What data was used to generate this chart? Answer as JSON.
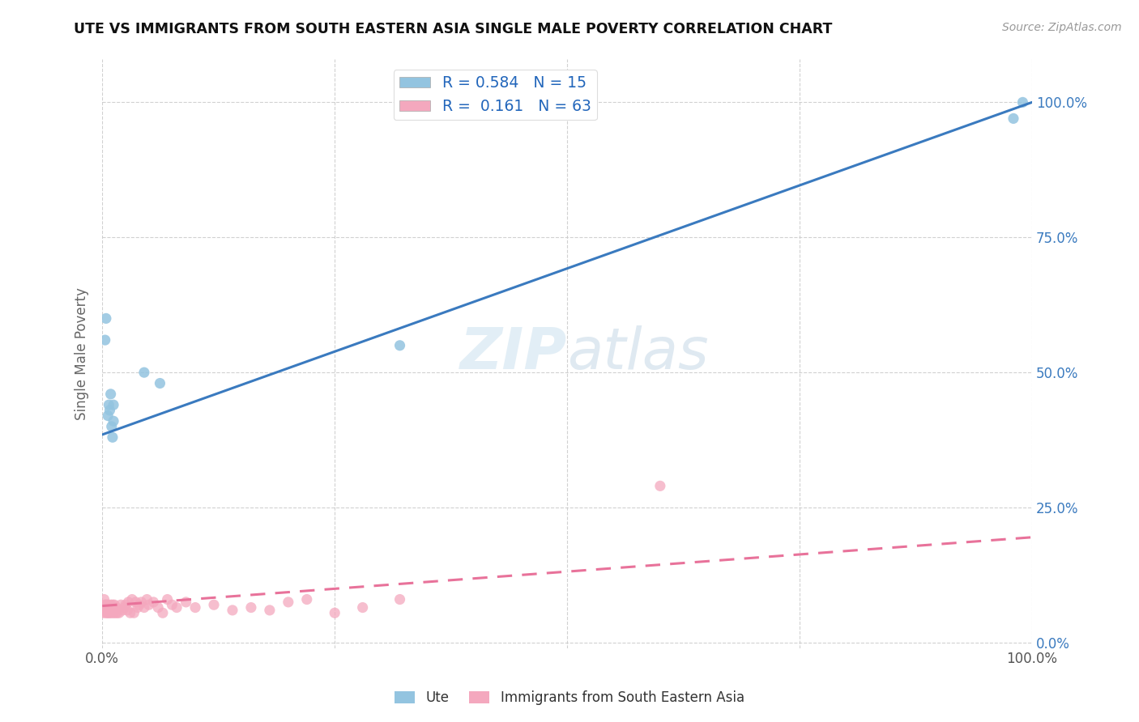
{
  "title": "UTE VS IMMIGRANTS FROM SOUTH EASTERN ASIA SINGLE MALE POVERTY CORRELATION CHART",
  "source": "Source: ZipAtlas.com",
  "ylabel": "Single Male Poverty",
  "legend_labels": [
    "Ute",
    "Immigrants from South Eastern Asia"
  ],
  "r_ute": 0.584,
  "n_ute": 15,
  "r_immigrants": 0.161,
  "n_immigrants": 63,
  "blue_scatter_color": "#93c4e0",
  "pink_scatter_color": "#f4a8be",
  "blue_line_color": "#3a7abf",
  "pink_line_color": "#e8729a",
  "watermark_color": "#d0e4f0",
  "watermark_text": "ZIPatlas",
  "ute_x": [
    0.004,
    0.006,
    0.007,
    0.008,
    0.009,
    0.01,
    0.011,
    0.012,
    0.012,
    0.045,
    0.062,
    0.32,
    0.98,
    0.99,
    0.003
  ],
  "ute_y": [
    0.6,
    0.42,
    0.44,
    0.43,
    0.46,
    0.4,
    0.38,
    0.44,
    0.41,
    0.5,
    0.48,
    0.55,
    0.97,
    1.0,
    0.56
  ],
  "imm_x": [
    0.001,
    0.002,
    0.002,
    0.003,
    0.003,
    0.003,
    0.004,
    0.004,
    0.005,
    0.005,
    0.005,
    0.006,
    0.006,
    0.007,
    0.007,
    0.008,
    0.008,
    0.009,
    0.009,
    0.01,
    0.01,
    0.011,
    0.011,
    0.012,
    0.013,
    0.014,
    0.015,
    0.016,
    0.018,
    0.02,
    0.022,
    0.024,
    0.025,
    0.027,
    0.028,
    0.03,
    0.032,
    0.034,
    0.036,
    0.038,
    0.04,
    0.042,
    0.045,
    0.048,
    0.05,
    0.055,
    0.06,
    0.065,
    0.07,
    0.075,
    0.08,
    0.09,
    0.1,
    0.12,
    0.14,
    0.16,
    0.18,
    0.2,
    0.22,
    0.25,
    0.28,
    0.32,
    0.6
  ],
  "imm_y": [
    0.055,
    0.08,
    0.065,
    0.06,
    0.07,
    0.065,
    0.07,
    0.055,
    0.06,
    0.065,
    0.055,
    0.07,
    0.06,
    0.065,
    0.055,
    0.055,
    0.065,
    0.06,
    0.07,
    0.065,
    0.055,
    0.06,
    0.07,
    0.055,
    0.07,
    0.055,
    0.065,
    0.055,
    0.055,
    0.07,
    0.06,
    0.065,
    0.07,
    0.06,
    0.075,
    0.055,
    0.08,
    0.055,
    0.075,
    0.065,
    0.07,
    0.075,
    0.065,
    0.08,
    0.07,
    0.075,
    0.065,
    0.055,
    0.08,
    0.07,
    0.065,
    0.075,
    0.065,
    0.07,
    0.06,
    0.065,
    0.06,
    0.075,
    0.08,
    0.055,
    0.065,
    0.08,
    0.29
  ],
  "blue_line_x0": 0.0,
  "blue_line_y0": 0.385,
  "blue_line_x1": 1.0,
  "blue_line_y1": 1.0,
  "pink_line_x0": 0.0,
  "pink_line_y0": 0.068,
  "pink_line_x1": 1.0,
  "pink_line_y1": 0.195,
  "xlim": [
    0.0,
    1.0
  ],
  "ylim": [
    -0.01,
    1.08
  ],
  "yticks": [
    0.0,
    0.25,
    0.5,
    0.75,
    1.0
  ],
  "ytick_labels": [
    "0.0%",
    "25.0%",
    "50.0%",
    "75.0%",
    "100.0%"
  ],
  "xticks": [
    0.0,
    0.25,
    0.5,
    0.75,
    1.0
  ],
  "xtick_labels": [
    "0.0%",
    "",
    "",
    "",
    "100.0%"
  ],
  "background_color": "#ffffff",
  "grid_color": "#cccccc"
}
